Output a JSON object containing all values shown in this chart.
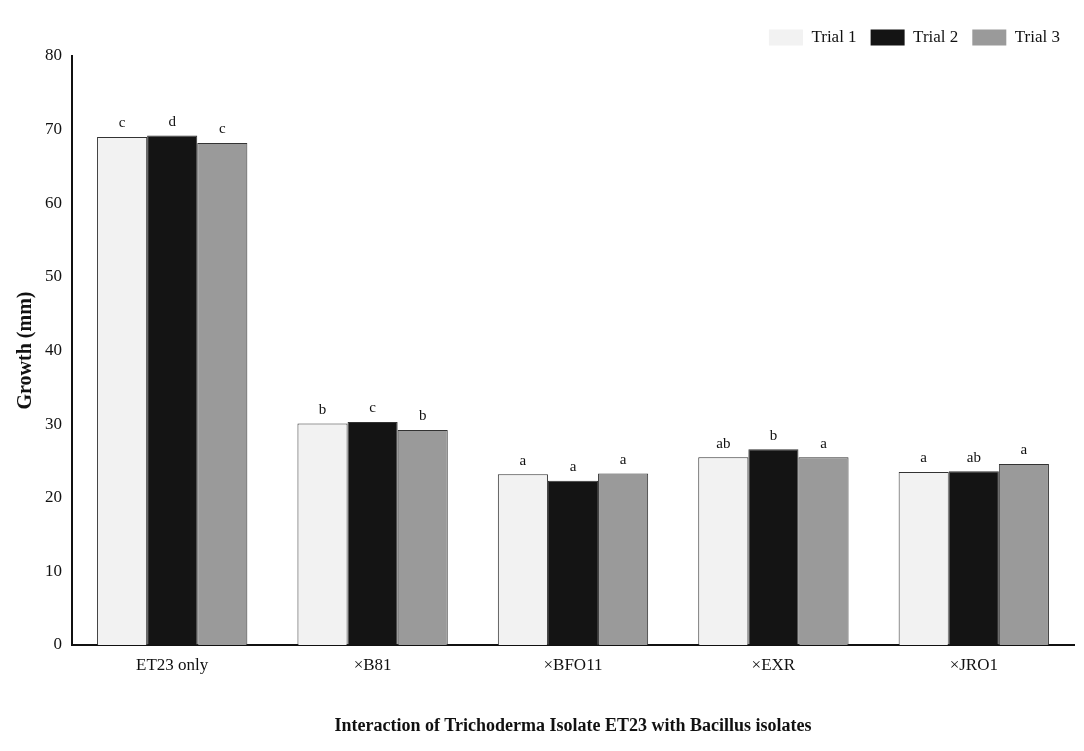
{
  "chart_data": {
    "type": "bar",
    "xlabel": "Interaction of Trichoderma Isolate ET23 with Bacillus isolates",
    "ylabel": "Growth (mm)",
    "categories": [
      "ET23 only",
      "×B81",
      "×BFO11",
      "×EXR",
      "×JRO1"
    ],
    "series": [
      {
        "name": "Trial 1",
        "color": "#f2f2f2",
        "values": [
          69,
          30.1,
          23.2,
          25.5,
          23.5
        ],
        "value_labels": [
          "c",
          "b",
          "a",
          "ab",
          "a"
        ]
      },
      {
        "name": "Trial 2",
        "color": "#141414",
        "values": [
          69.2,
          30.3,
          22.3,
          26.6,
          23.6
        ],
        "value_labels": [
          "d",
          "c",
          "a",
          "b",
          "ab"
        ]
      },
      {
        "name": "Trial 3",
        "color": "#9a9a9a",
        "values": [
          68.2,
          29.2,
          23.3,
          25.5,
          24.6
        ],
        "value_labels": [
          "c",
          "b",
          "a",
          "a",
          "a"
        ]
      }
    ],
    "ylim": [
      0,
      80
    ],
    "yticks": [
      0,
      10,
      20,
      30,
      40,
      50,
      60,
      70,
      80
    ],
    "grid": false,
    "legend": "top right"
  }
}
